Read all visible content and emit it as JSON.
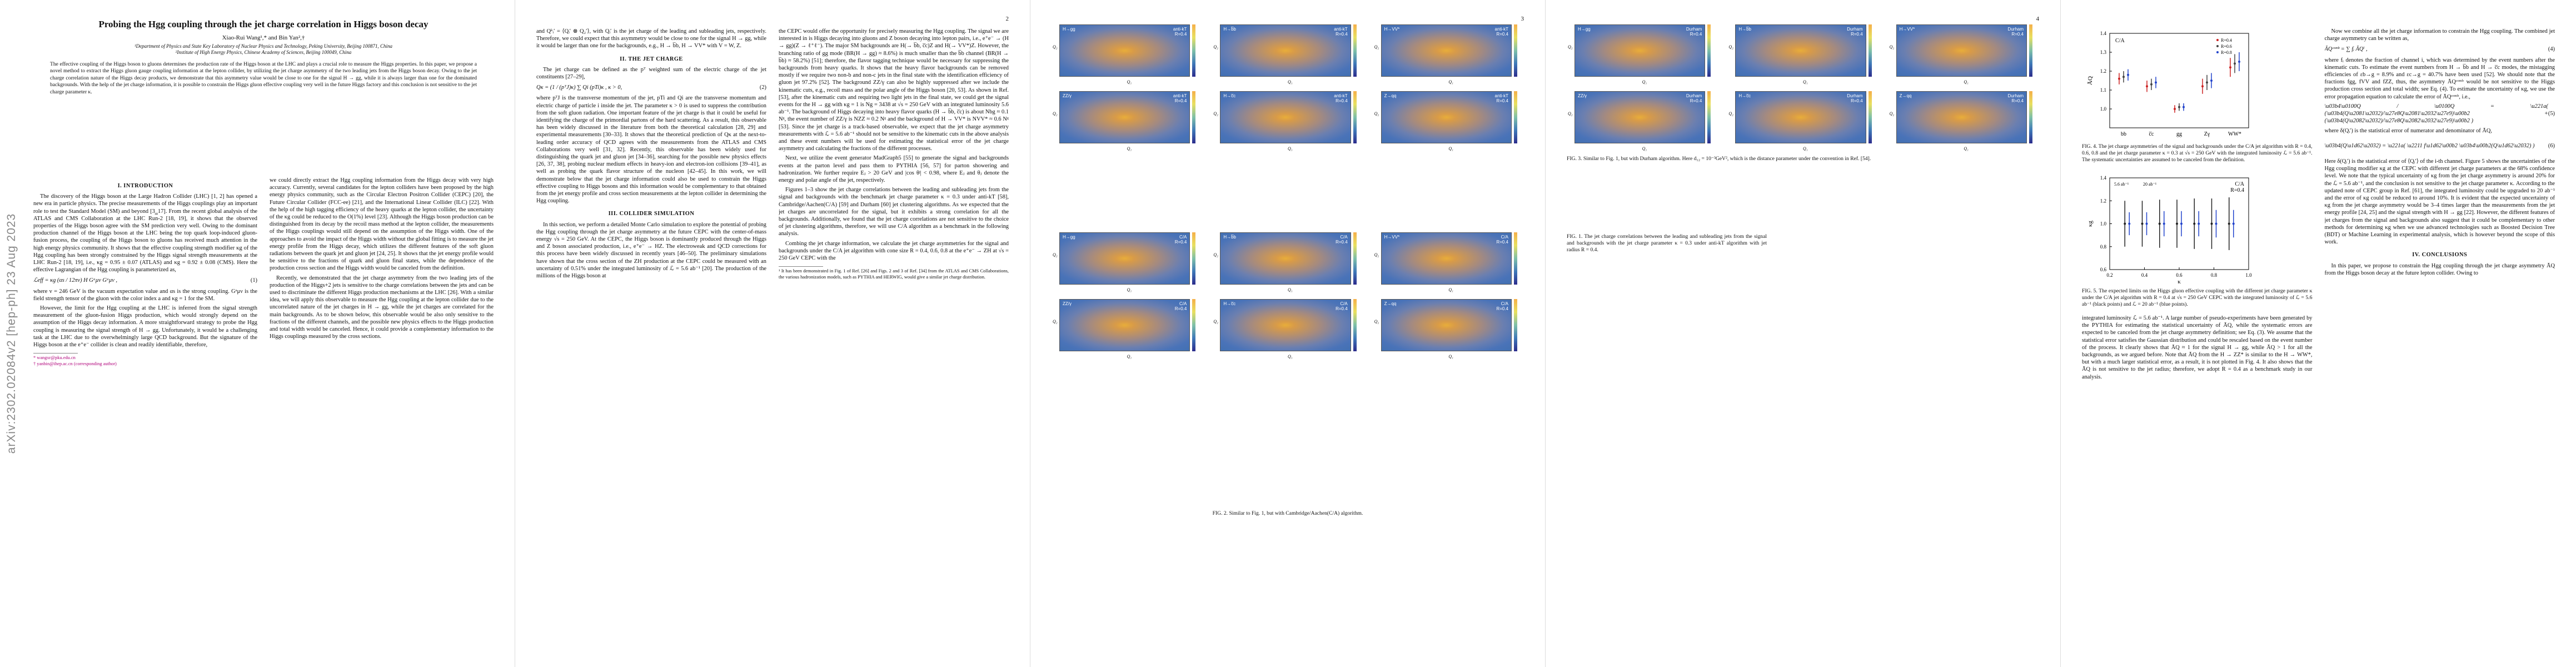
{
  "arxiv_id": "arXiv:2302.02084v2  [hep-ph]  23 Aug 2023",
  "page_numbers": [
    "2",
    "3",
    "4",
    ""
  ],
  "title": "Probing the Hgg coupling through the jet charge correlation in Higgs boson decay",
  "authors": "Xiao-Rui Wang¹,* and Bin Yan²,†",
  "affiliations": "¹Department of Physics and State Key Laboratory of Nuclear Physics and Technology, Peking University, Beijing 100871, China\n²Institute of High Energy Physics, Chinese Academy of Sciences, Beijing 100049, China",
  "abstract": "The effective coupling of the Higgs boson to gluons determines the production rate of the Higgs boson at the LHC and plays a crucial role to measure the Higgs properties. In this paper, we propose a novel method to extract the Higgs gluon gauge coupling information at the lepton collider, by utilizing the jet charge asymmetry of the two leading jets from the Higgs boson decay. Owing to the jet charge correlation nature of the Higgs decay products, we demonstrate that this asymmetry value would be close to one for the signal H → gg, while it is always larger than one for the dominated backgrounds. With the help of the jet charge information, it is possible to constrain the Higgs gluon effective coupling very well in the future Higgs factory and this conclusion is not sensitive to the jet charge parameter κ.",
  "sections": {
    "intro": "I.   INTRODUCTION",
    "jet_charge": "II.   THE JET CHARGE",
    "collider": "III.   COLLIDER SIMULATION",
    "conclusions": "IV.   CONCLUSIONS"
  },
  "p1": {
    "c1a": "The discovery of the Higgs boson at the Large Hadron Collider (LHC) [1, 2] has opened a new era in particle physics. The precise measurements of the Higgs couplings play an important role to test the Standard Model (SM) and beyond [3‗17]. From the recent global analysis of the ATLAS and CMS Collaboration at the LHC Run-2 [18, 19], it shows that the observed properties of the Higgs boson agree with the SM prediction very well. Owing to the dominant production channel of the Higgs boson at the LHC being the top quark loop-induced gluon-fusion process, the coupling of the Higgs boson to gluons has received much attention in the high energy physics community. It shows that the effective coupling strength modifier κg of the Hgg coupling has been strongly constrained by the Higgs signal strength measurements at the LHC Run-2 [18, 19], i.e., κg = 0.95 ± 0.07 (ATLAS) and κg = 0.92 ± 0.08 (CMS). Here the effective Lagrangian of the Hgg coupling is parameterized as,",
    "eq1": "ℒeff = κg (αs / 12πv) H Gᵃμν Gᵃμν ,",
    "eq1n": "(1)",
    "c1b": "where v = 246 GeV is the vacuum expectation value and αs is the strong coupling. Gᵃμν is the field strength tensor of the gluon with the color index a and κg = 1 for the SM.",
    "c1c": "However, the limit for the Hgg coupling at the LHC is inferred from the signal strength measurement of the gluon-fusion Higgs production, which would strongly depend on the assumption of the Higgs decay information. A more straightforward strategy to probe the Hgg coupling is measuring the signal strength of H → gg. Unfortunately, it would be a challenging task at the LHC due to the overwhelmingly large QCD background. But the signature of the Higgs boson at the e⁺e⁻ collider is clean and readily identifiable, therefore,",
    "foot1": "* wangxr@pku.edu.cn",
    "foot2": "† yanbin@ihep.ac.cn (corresponding author)",
    "c2a": "we could directly extract the Hgg coupling information from the Higgs decay with very high accuracy. Currently, several candidates for the lepton colliders have been proposed by the high energy physics community, such as the Circular Electron Positron Collider (CEPC) [20], the Future Circular Collider (FCC-ee) [21], and the International Linear Collider (ILC) [22]. With the help of the high tagging efficiency of the heavy quarks at the lepton collider, the uncertainty of the κg could be reduced to the O(1%) level [23]. Although the Higgs boson production can be distinguished from its decay by the recoil mass method at the lepton collider, the measurements of the Higgs couplings would still depend on the assumption of the Higgs width. One of the approaches to avoid the impact of the Higgs width without the global fitting is to measure the jet energy profile from the Higgs decay, which utilizes the different features of the soft gluon radiations between the quark jet and gluon jet [24, 25]. It shows that the jet energy profile would be sensitive to the fractions of quark and gluon final states, while the dependence of the production cross section and the Higgs width would be canceled from the definition.",
    "c2b": "Recently, we demonstrated that the jet charge asymmetry from the two leading jets of the production of the Higgs+2 jets is sensitive to the charge correlations between the jets and can be used to discriminate the different Higgs production mechanisms at the LHC [26]. With a similar idea, we will apply this observable to measure the Hgg coupling at the lepton collider due to the uncorrelated nature of the jet charges in H → gg, while the jet charges are correlated for the main backgrounds. As to be shown below, this observable would be also only sensitive to the fractions of the different channels, and the possible new physics effects to the Higgs production and total width would be canceled. Hence, it could provide a complementary information to the Higgs couplings measured by the cross sections."
  },
  "p2": {
    "c1a": "and Qᵏᵢ′ = ⟨Qᵢ′ ⊗ Q₂′⟩, with Qᵢ′ is the jet charge of the leading and subleading jets, respectively. Therefore, we could expect that this asymmetry would be close to one for the signal H → gg, while it would be larger than one for the backgrounds, e.g., H → b̅b, H → VV* with V = W, Z.",
    "c1b": "The jet charge can be defined as the pᵀ weighted sum of the electric charge of the jet constituents [27–29],",
    "eq2": "Qκ = (1 / (pᵀJ)κ) ∑ Qi (pTi)κ ,   κ > 0,",
    "eq2n": "(2)",
    "c1c": "where pᵀJ is the transverse momentum of the jet, pTi and Qi are the transverse momentum and electric charge of particle i inside the jet. The parameter κ > 0 is used to suppress the contribution from the soft gluon radiation. One important feature of the jet charge is that it could be useful for identifying the charge of the primordial partons of the hard scattering. As a result, this observable has been widely discussed in the literature from both the theoretical calculation [28, 29] and experimental measurements [30–33]. It shows that the theoretical prediction of Qκ at the next-to-leading order accuracy of QCD agrees with the measurements from the ATLAS and CMS Collaborations very well [31, 32]. Recently, this observable has been widely used for distinguishing the quark jet and gluon jet [34–36], searching for the possible new physics effects [26, 37, 38], probing nuclear medium effects in heavy-ion and electron-ion collisions [39–41], as well as probing the quark flavor structure of the nucleon [42–45]. In this work, we will demonstrate below that the jet charge information could also be used to constrain the Higgs effective coupling to Higgs bosons and this information would be complementary to that obtained from the jet energy profile and cross section measurements at the lepton collider in determining the Hgg coupling.",
    "c1d": "In this section, we perform a detailed Monte Carlo simulation to explore the potential of probing the Hgg coupling through the jet charge asymmetry at the future CEPC with the center-of-mass energy √s = 250 GeV. At the CEPC, the Higgs boson is dominantly produced through the Higgs and Z boson associated production, i.e., e⁺e⁻ → HZ. The electroweak and QCD corrections for this process have been widely discussed in recently years [46–50]. The preliminary simulations have shown that the cross section of the ZH production at the CEPC could be measured with an uncertainty of 0.51% under the integrated luminosity of ℒ = 5.6 ab⁻¹ [20]. The production of the millions of the Higgs boson at",
    "c2a": "the CEPC would offer the opportunity for precisely measuring the Hgg coupling. The signal we are interested in is Higgs decaying into gluons and Z boson decaying into lepton pairs, i.e., e⁺e⁻ → (H → gg)(Z → ℓ⁺ℓ⁻). The major SM backgrounds are H(→ b̅b, c̅c)Z and H(→ VV*)Z. However, the branching ratio of gg mode (BR(H → gg) ≈ 8.6%) is much smaller than the b̅b channel (BR(H → b̅b) ≈ 58.2%) [51]; therefore, the flavor tagging technique would be necessary for suppressing the backgrounds from heavy quarks. It shows that the heavy flavor backgrounds can be removed mostly if we require two non-b and non-c jets in the final state with the identification efficiency of gluon jet 97.2% [52]. The background ZZ/γ can also be highly suppressed after we include the kinematic cuts, e.g., recoil mass and the polar angle of the Higgs boson [20, 53]. As shown in Ref. [53], after the kinematic cuts and requiring two light jets in the final state, we could get the signal events for the H → gg with κg = 1 is Ng = 3438 at √s = 250 GeV with an integrated luminosity 5.6 ab⁻¹. The background of Higgs decaying into heavy flavor quarks (H → b̅b, c̅c) is about Nbg ≈ 0.1 Nᵍ, the event number of ZZ/γ is NZZ ≈ 0.2 Nᵍ and the background of H → VV* is NVV* ≈ 0.6 Nᵍ [53]. Since the jet charge is a track-based observable, we expect that the jet charge asymmetry measurements with ℒ = 5.6 ab⁻¹ should not be sensitive to the kinematic cuts in the above analysis and these event numbers will be used for estimating the statistical error of the jet charge asymmetry and calculating the fractions of the different processes.",
    "c2b": "Next, we utilize the event generator MadGraph5 [55] to generate the signal and backgrounds events at the parton level and pass them to PYTHIA [56, 57] for parton showering and hadronization. We further require Eⱼ > 20 GeV and |cos θʲ| < 0.98, where Eⱼ and θⱼ denote the energy and polar angle of the jet, respectively.",
    "c2c": "Figures 1–3 show the jet charge correlations between the leading and subleading jets from the signal and backgrounds with the benchmark jet charge parameter κ = 0.3 under anti-kT [58], Cambridge/Aachen(C/A) [59] and Durham [60] jet clustering algorithms. As we expected that the jet charges are uncorrelated for the signal, but it exhibits a strong correlation for all the backgrounds. Additionally, we found that the jet charge correlations are not sensitive to the choice of jet clustering algorithms, therefore, we will use C/A algorithm as a benchmark in the following analysis.",
    "c2d": "Combing the jet charge information, we calculate the jet charge asymmetries for the signal and backgrounds under the C/A jet algorithm with cone size R = 0.4, 0.6, 0.8 at the e⁺e⁻ → ZH at √s = 250 GeV CEPC with the",
    "foot": "¹ It has been demonstrated in Fig. 1 of Ref. [26] and Figs. 2 and 3 of Ref. [34] from the ATLAS and CMS Collaborations, the various hadronization models, such as PYTHIA and HERWIG, would give a similar jet charge distribution."
  },
  "p3": {
    "fig1_caption": "FIG. 1. The jet charge correlations between the leading and subleading jets from the signal and backgrounds with the jet charge parameter κ = 0.3 under anti-kT algorithm with jet radius R = 0.4.",
    "fig2_caption": "FIG. 2. Similar to Fig. 1, but with Cambridge/Aachen(C/A) algorithm.",
    "panel_labels": [
      "H→gg",
      "H→b̅b",
      "H→VV*",
      "ZZ/γ",
      "H→c̅c",
      "Z→qq"
    ],
    "alg1": "anti-kT\nR=0.4",
    "alg2": "C/A\nR=0.4",
    "alg3": "Durham\nR=0.4",
    "fig3_caption": "FIG. 3. Similar to Fig. 1, but with Durham algorithm. Here d₁₂ = 10⁻³GeV², which is the distance parameter under the convention in Ref. [54].",
    "axis_x": "Q₁",
    "axis_y": "Q₂"
  },
  "p4": {
    "fig4_caption": "FIG. 4. The jet charge asymmetries of the signal and backgrounds under the C/A jet algorithm with R = 0.4, 0.6, 0.8 and the jet charge parameter κ = 0.3 at √s = 250 GeV with the integrated luminosity ℒ = 5.6 ab⁻¹. The systematic uncertainties are assumed to be canceled from the definition.",
    "fig5_caption": "FIG. 5. The expected limits on the Higgs gluon effective coupling with the different jet charge parameter κ under the C/A jet algorithm with R = 0.4 at √s = 250 GeV CEPC with the integrated luminosity of ℒ = 5.6 ab⁻¹ (black points) and ℒ = 20 ab⁻¹ (blue points).",
    "c1a": "integrated luminosity ℒ = 5.6 ab⁻¹. A large number of pseudo-experiments have been generated by the PYTHIA for estimating the statistical uncertainty of ĀQ, while the systematic errors are expected to be canceled from the jet charge asymmetry definition; see Eq. (3). We assume that the statistical error satisfies the Gaussian distribution and could be rescaled based on the event number of the process. It clearly shows that ĀQ ≈ 1 for the signal H → gg, while ĀQ > 1 for all the backgrounds, as we argued before. Note that ĀQ from the H → ZZ* is similar to the H → WW*, but with a much larger statistical error, as a result, it is not plotted in Fig. 4. It also shows that the ĀQ is not sensitive to the jet radius; therefore, we adopt R = 0.4 as a benchmark study in our analysis.",
    "c2a": "Now we combine all the jet charge information to constrain the Hgg coupling. The combined jet charge asymmetry can be written as,",
    "eq4": "ĀQᶜᵒᵐᵇ = ∑ fᵢ ĀQⁱ ,",
    "eq4n": "(4)",
    "c2b": "where fᵢ denotes the fraction of channel i, which was determined by the event numbers after the kinematic cuts. To estimate the event numbers from H → b̅b and H → c̅c modes, the mistagging efficiencies of εb→g = 8.9% and εc→g = 40.7% have been used [52]. We should note that the fractions fgg, fVV and fZZ, thus, the asymmetry ĀQᶜᵒᵐᵇ would be not sensitive to the Higgs production cross section and total width; see Eq. (4). To estimate the uncertainty of κg, we use the error propagation equation to calculate the error of ĀQᶜᵒᵐᵇ, i.e.,",
    "eq5n": "(5)",
    "eq6n": "(6)",
    "c2c": "where δ(Qᵢ′) is the statistical error of numerator and denominator of ĀQ,",
    "c2d": "Here δ(Qᵢ′) is the statistical error of ⟨Qᵢ′⟩ of the i-th channel. Figure 5 shows the uncertainties of the Hgg coupling modifier κg at the CEPC with different jet charge parameters at the 68% confidence level. We note that the typical uncertainty of κg from the jet charge asymmetry is around 20% for the ℒ = 5.6 ab⁻¹, and the conclusion is not sensitive to the jet charge parameter κ. According to the updated note of CEPC group in Ref. [61], the integrated luminosity could be upgraded to 20 ab⁻¹ and the error of κg could be reduced to around 10%. It is evident that the expected uncertainty of κg from the jet charge asymmetry would be 3–4 times larger than the measurements from the jet energy profile [24, 25] and the signal strength with H → gg [22]. However, the different features of jet charges from the signal and backgrounds also suggest that it could be complementary to other methods for determining κg when we use advanced technologies such as Boosted Decision Tree (BDT) or Machine Learning in experimental analysis, which is however beyond the scope of this work.",
    "c2e": "In this paper, we propose to constrain the Hgg coupling through the jet charge asymmetry ĀQ from the Higgs boson decay at the future lepton collider. Owing to"
  },
  "chart_data": [
    {
      "type": "scatter",
      "title": "",
      "annotation": "C/A",
      "categories": [
        "bb",
        "c̅c",
        "gg",
        "Zγ",
        "WW*"
      ],
      "ylabel": "ĀQ",
      "ylim": [
        0.9,
        1.4
      ],
      "yticks": [
        1.0,
        1.1,
        1.2,
        1.3,
        1.4
      ],
      "legend_position": "top-right",
      "series": [
        {
          "name": "R=0.4",
          "color": "#cc2222",
          "values": [
            1.16,
            1.12,
            1.0,
            1.12,
            1.22
          ],
          "errors": [
            0.03,
            0.03,
            0.02,
            0.04,
            0.05
          ]
        },
        {
          "name": "R=0.6",
          "color": "#444444",
          "values": [
            1.17,
            1.13,
            1.01,
            1.14,
            1.24
          ],
          "errors": [
            0.03,
            0.03,
            0.02,
            0.04,
            0.05
          ]
        },
        {
          "name": "R=0.8",
          "color": "#2244cc",
          "values": [
            1.18,
            1.14,
            1.01,
            1.15,
            1.25
          ],
          "errors": [
            0.03,
            0.03,
            0.02,
            0.04,
            0.05
          ]
        }
      ]
    },
    {
      "type": "scatter",
      "title": "",
      "annotation": "C/A\nR=0.4",
      "xlabel": "κ",
      "ylabel": "κg",
      "xlim": [
        0.2,
        1.0
      ],
      "ylim": [
        0.6,
        1.4
      ],
      "xticks": [
        0.2,
        0.4,
        0.6,
        0.8,
        1.0
      ],
      "yticks": [
        0.6,
        0.8,
        1.0,
        1.2,
        1.4
      ],
      "legend_labels": [
        "5.6 ab⁻¹",
        "20 ab⁻¹"
      ],
      "series": [
        {
          "name": "5.6 ab⁻¹",
          "color": "#222222",
          "x": [
            0.3,
            0.4,
            0.5,
            0.6,
            0.7,
            0.8,
            0.9
          ],
          "values": [
            1.0,
            1.0,
            1.0,
            1.0,
            1.0,
            1.0,
            1.0
          ],
          "errors": [
            0.2,
            0.2,
            0.21,
            0.21,
            0.22,
            0.22,
            0.23
          ]
        },
        {
          "name": "20 ab⁻¹",
          "color": "#2244cc",
          "x": [
            0.3,
            0.4,
            0.5,
            0.6,
            0.7,
            0.8,
            0.9
          ],
          "values": [
            1.0,
            1.0,
            1.0,
            1.0,
            1.0,
            1.0,
            1.0
          ],
          "errors": [
            0.1,
            0.1,
            0.11,
            0.11,
            0.11,
            0.12,
            0.12
          ]
        }
      ]
    }
  ]
}
